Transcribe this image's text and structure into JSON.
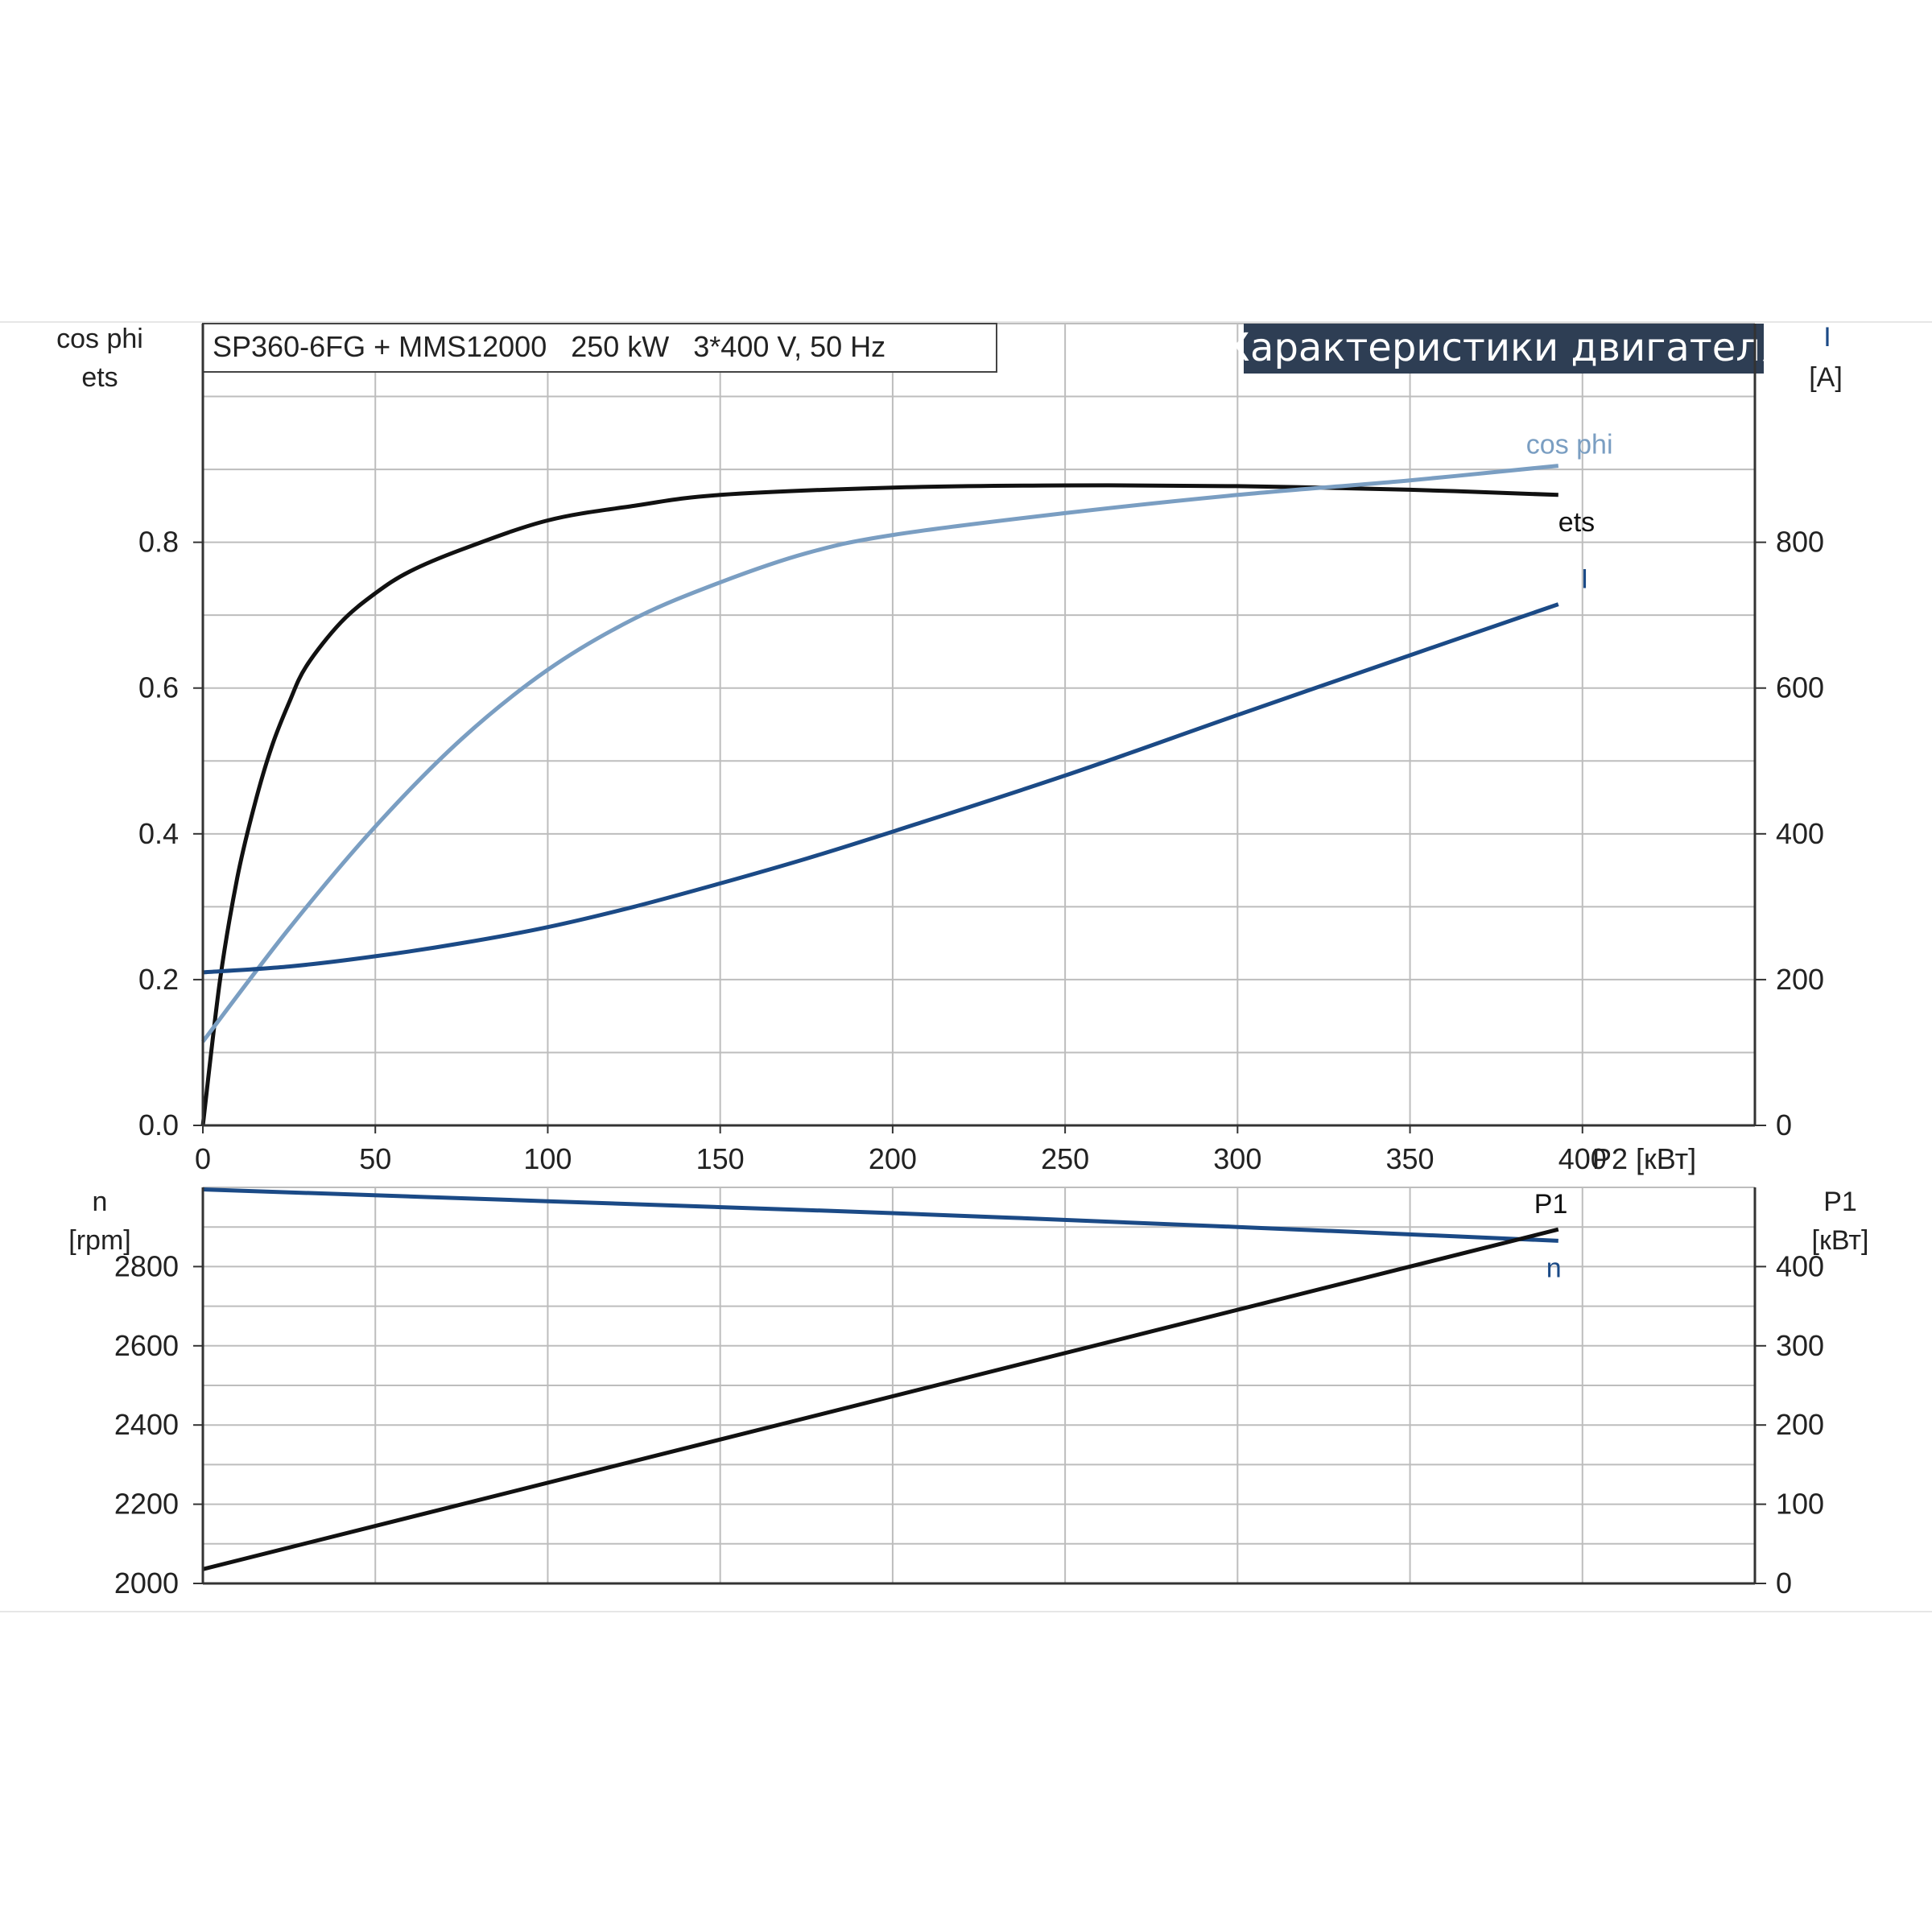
{
  "title": "SP360-6FG + MMS12000   250 kW   3*400 V, 50 Hz",
  "banner": "Характеристики двигателя",
  "colors": {
    "ets": "#111111",
    "cos_phi": "#7a9ec2",
    "I": "#1b4a86",
    "n": "#1b4a86",
    "P1": "#111111",
    "banner_bg": "#2e3e54",
    "grid": "#bdbdbd"
  },
  "chart_data": [
    {
      "type": "line",
      "name": "upper",
      "x_axis": {
        "label": "P2 [кВт]",
        "range": [
          0,
          450
        ],
        "ticks": [
          0,
          50,
          100,
          150,
          200,
          250,
          300,
          350,
          400
        ]
      },
      "left_axis": {
        "label_line1": "cos phi",
        "label_line2": "ets",
        "range": [
          0,
          1.1
        ],
        "ticks": [
          "0.0",
          "0.2",
          "0.4",
          "0.6",
          "0.8"
        ]
      },
      "right_axis": {
        "label_line1": "I",
        "label_line2": "[A]",
        "range": [
          0,
          1100
        ],
        "ticks": [
          "0",
          "200",
          "400",
          "600",
          "800"
        ]
      },
      "grid": true,
      "series": [
        {
          "name": "ets",
          "axis": "left",
          "color": "#111111",
          "x": [
            0,
            5,
            10,
            15,
            20,
            25,
            30,
            40,
            50,
            60,
            75,
            100,
            125,
            150,
            200,
            250,
            300,
            350,
            393
          ],
          "y": [
            0.0,
            0.2,
            0.34,
            0.44,
            0.52,
            0.58,
            0.63,
            0.69,
            0.73,
            0.76,
            0.79,
            0.83,
            0.85,
            0.865,
            0.875,
            0.878,
            0.877,
            0.872,
            0.865
          ]
        },
        {
          "name": "cos phi",
          "axis": "left",
          "color": "#7a9ec2",
          "x": [
            0,
            25,
            50,
            75,
            100,
            125,
            150,
            175,
            200,
            250,
            300,
            350,
            393
          ],
          "y": [
            0.115,
            0.27,
            0.41,
            0.53,
            0.625,
            0.695,
            0.745,
            0.785,
            0.81,
            0.84,
            0.865,
            0.885,
            0.905
          ]
        },
        {
          "name": "I",
          "axis": "right",
          "color": "#1b4a86",
          "x": [
            0,
            25,
            50,
            75,
            100,
            125,
            150,
            175,
            200,
            250,
            300,
            350,
            393
          ],
          "y": [
            210,
            218,
            232,
            250,
            272,
            300,
            332,
            366,
            403,
            480,
            563,
            645,
            715
          ]
        }
      ]
    },
    {
      "type": "line",
      "name": "lower",
      "x_axis": {
        "label": "",
        "range": [
          0,
          450
        ]
      },
      "left_axis": {
        "label_line1": "n",
        "label_line2": "[rpm]",
        "range": [
          2000,
          3000
        ],
        "ticks": [
          "2000",
          "2200",
          "2400",
          "2600",
          "2800"
        ]
      },
      "right_axis": {
        "label_line1": "P1",
        "label_line2": "[кВт]",
        "range": [
          0,
          500
        ],
        "ticks": [
          "0",
          "100",
          "200",
          "300",
          "400"
        ]
      },
      "grid": true,
      "series": [
        {
          "name": "n",
          "axis": "left",
          "color": "#1b4a86",
          "x": [
            0,
            100,
            200,
            300,
            393
          ],
          "y": [
            2995,
            2965,
            2935,
            2900,
            2865
          ]
        },
        {
          "name": "P1",
          "axis": "right",
          "color": "#111111",
          "x": [
            0,
            393
          ],
          "y": [
            18,
            447
          ]
        }
      ]
    }
  ]
}
